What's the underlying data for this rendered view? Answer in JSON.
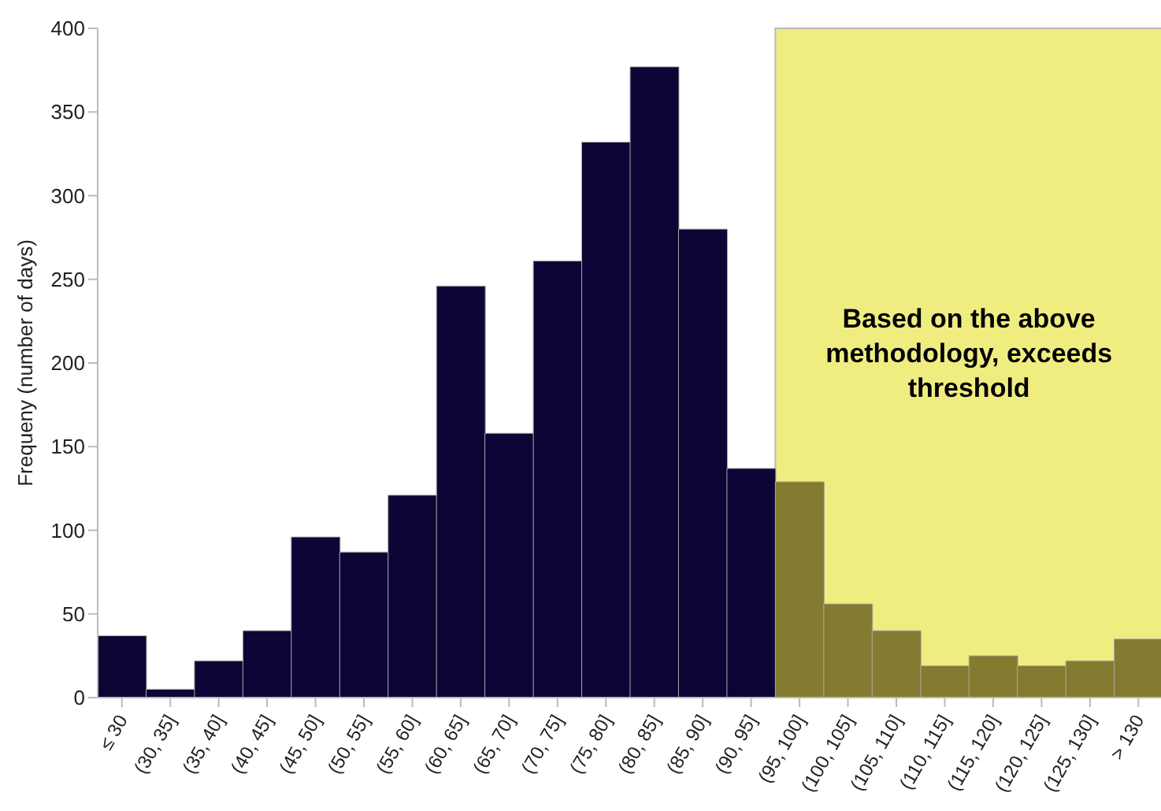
{
  "chart_data": {
    "type": "bar",
    "ylabel": "Frequeny (number of days)",
    "categories": [
      "≤ 30",
      "(30, 35]",
      "(35, 40]",
      "(40, 45]",
      "(45, 50]",
      "(50, 55]",
      "(55, 60]",
      "(60, 65]",
      "(65, 70]",
      "(70, 75]",
      "(75, 80]",
      "(80, 85]",
      "(85, 90]",
      "(90, 95]",
      "(95, 100]",
      "(100, 105]",
      "(105, 110]",
      "(110, 115]",
      "(115, 120]",
      "(120, 125]",
      "(125, 130]",
      "> 130"
    ],
    "values": [
      37,
      5,
      22,
      40,
      96,
      87,
      121,
      246,
      158,
      261,
      332,
      377,
      280,
      137,
      129,
      56,
      40,
      19,
      25,
      19,
      22,
      35
    ],
    "colors": [
      "#0d0535",
      "#0d0535",
      "#0d0535",
      "#0d0535",
      "#0d0535",
      "#0d0535",
      "#0d0535",
      "#0d0535",
      "#0d0535",
      "#0d0535",
      "#0d0535",
      "#0d0535",
      "#0d0535",
      "#0d0535",
      "#857b30",
      "#857b30",
      "#857b30",
      "#857b30",
      "#857b30",
      "#857b30",
      "#857b30",
      "#857b30"
    ],
    "ylim": [
      0,
      400
    ],
    "yticks": [
      0,
      50,
      100,
      150,
      200,
      250,
      300,
      350,
      400
    ],
    "grid": false,
    "bands": [
      {
        "axis": "x",
        "from": "(95, 100]",
        "to": "> 130",
        "label": "Based on the above methodology, exceeds threshold",
        "color": "#f0ed80"
      }
    ]
  }
}
